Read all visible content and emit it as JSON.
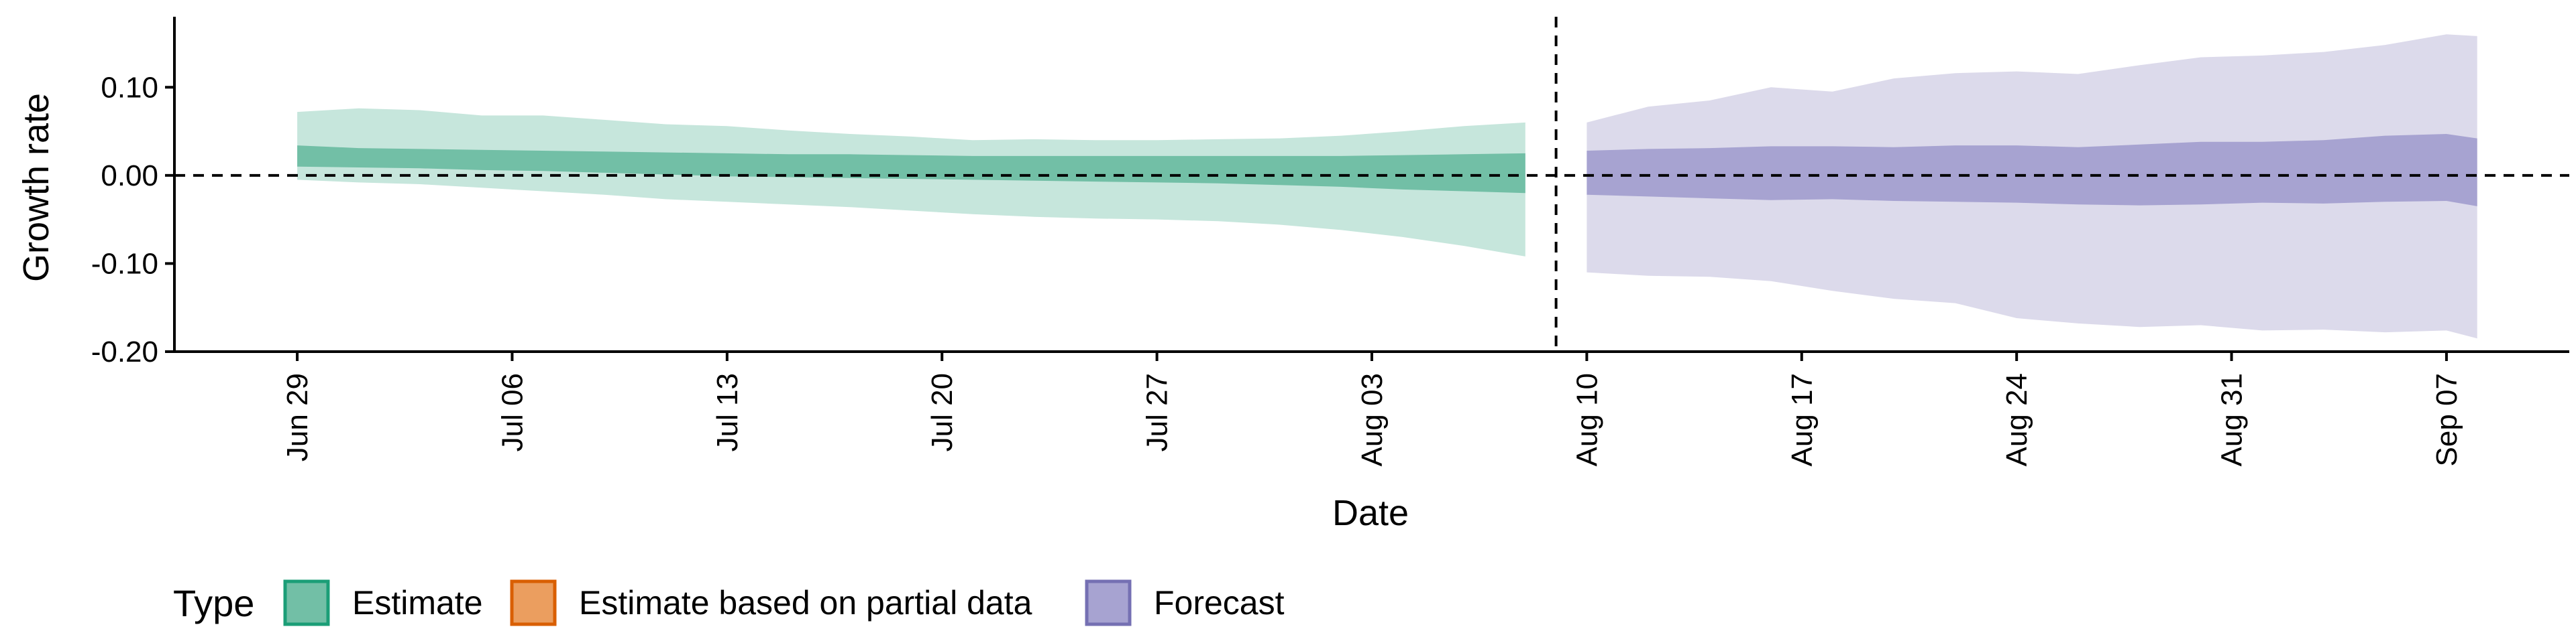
{
  "chart_data": {
    "type": "area",
    "title": "",
    "xlabel": "Date",
    "ylabel": "Growth rate",
    "x_ticks": [
      "Jun 29",
      "Jul 06",
      "Jul 13",
      "Jul 20",
      "Jul 27",
      "Aug 03",
      "Aug 10",
      "Aug 17",
      "Aug 24",
      "Aug 31",
      "Sep 07"
    ],
    "y_ticks": [
      "0.10",
      "0.00",
      "-0.10",
      "-0.20"
    ],
    "ylim": [
      -0.2,
      0.18
    ],
    "xlim": [
      "2020-06-25",
      "2020-09-11"
    ],
    "reference_lines": {
      "horizontal_y": 0.0,
      "vertical_date": "2020-08-09"
    },
    "legend": {
      "title": "Type",
      "position": "bottom-left",
      "entries": [
        {
          "label": "Estimate",
          "fill": "#72bfa6",
          "border": "#1b9e77"
        },
        {
          "label": "Estimate based on partial data",
          "fill": "#eb9e5f",
          "border": "#d95f02"
        },
        {
          "label": "Forecast",
          "fill": "#a7a3d1",
          "border": "#7570b3"
        }
      ]
    },
    "series": [
      {
        "name": "Estimate",
        "outer_color": "#c6e6dc",
        "inner_color": "#72bfa6",
        "x": [
          "2020-06-29",
          "2020-07-01",
          "2020-07-03",
          "2020-07-05",
          "2020-07-07",
          "2020-07-09",
          "2020-07-11",
          "2020-07-13",
          "2020-07-15",
          "2020-07-17",
          "2020-07-19",
          "2020-07-21",
          "2020-07-23",
          "2020-07-25",
          "2020-07-27",
          "2020-07-29",
          "2020-07-31",
          "2020-08-02",
          "2020-08-04",
          "2020-08-06",
          "2020-08-08"
        ],
        "upper90": [
          0.072,
          0.076,
          0.074,
          0.068,
          0.068,
          0.063,
          0.058,
          0.056,
          0.051,
          0.047,
          0.044,
          0.04,
          0.041,
          0.04,
          0.04,
          0.041,
          0.042,
          0.045,
          0.05,
          0.056,
          0.06
        ],
        "upper50": [
          0.034,
          0.031,
          0.03,
          0.029,
          0.028,
          0.027,
          0.026,
          0.025,
          0.024,
          0.024,
          0.023,
          0.022,
          0.022,
          0.022,
          0.022,
          0.022,
          0.022,
          0.022,
          0.023,
          0.024,
          0.025
        ],
        "lower50": [
          0.01,
          0.009,
          0.008,
          0.006,
          0.005,
          0.003,
          0.001,
          -0.001,
          -0.002,
          -0.003,
          -0.004,
          -0.005,
          -0.006,
          -0.007,
          -0.008,
          -0.009,
          -0.011,
          -0.013,
          -0.016,
          -0.018,
          -0.02
        ],
        "lower90": [
          -0.005,
          -0.008,
          -0.01,
          -0.014,
          -0.018,
          -0.022,
          -0.027,
          -0.03,
          -0.033,
          -0.036,
          -0.04,
          -0.044,
          -0.047,
          -0.049,
          -0.05,
          -0.052,
          -0.056,
          -0.062,
          -0.07,
          -0.08,
          -0.092
        ]
      },
      {
        "name": "Forecast",
        "outer_color": "#dcdaeb",
        "inner_color": "#a7a3d1",
        "x": [
          "2020-08-10",
          "2020-08-12",
          "2020-08-14",
          "2020-08-16",
          "2020-08-18",
          "2020-08-20",
          "2020-08-22",
          "2020-08-24",
          "2020-08-26",
          "2020-08-28",
          "2020-08-30",
          "2020-09-01",
          "2020-09-03",
          "2020-09-05",
          "2020-09-07",
          "2020-09-08"
        ],
        "upper90": [
          0.06,
          0.078,
          0.085,
          0.1,
          0.095,
          0.11,
          0.116,
          0.118,
          0.115,
          0.125,
          0.134,
          0.136,
          0.14,
          0.148,
          0.16,
          0.158
        ],
        "upper50": [
          0.028,
          0.03,
          0.031,
          0.033,
          0.033,
          0.032,
          0.034,
          0.034,
          0.032,
          0.035,
          0.038,
          0.038,
          0.04,
          0.045,
          0.047,
          0.042
        ],
        "lower50": [
          -0.022,
          -0.024,
          -0.026,
          -0.028,
          -0.027,
          -0.029,
          -0.03,
          -0.031,
          -0.033,
          -0.034,
          -0.033,
          -0.031,
          -0.032,
          -0.03,
          -0.029,
          -0.035
        ],
        "lower90": [
          -0.11,
          -0.114,
          -0.115,
          -0.12,
          -0.131,
          -0.14,
          -0.145,
          -0.162,
          -0.168,
          -0.172,
          -0.17,
          -0.176,
          -0.175,
          -0.178,
          -0.176,
          -0.185
        ]
      }
    ]
  }
}
